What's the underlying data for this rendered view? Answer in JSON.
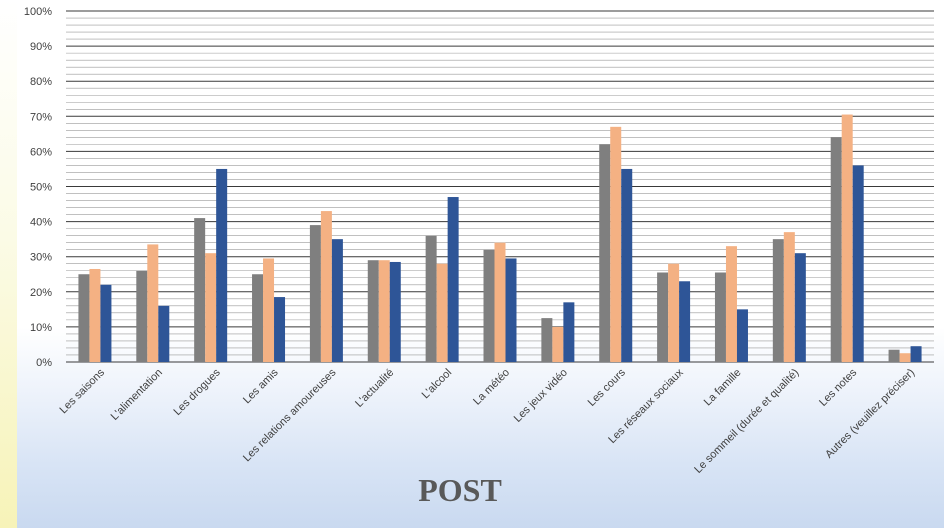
{
  "chart_data": {
    "type": "bar",
    "title": "POST",
    "xlabel": "",
    "ylabel": "",
    "ylim": [
      0,
      100
    ],
    "y_ticks": [
      "0%",
      "10%",
      "20%",
      "30%",
      "40%",
      "50%",
      "60%",
      "70%",
      "80%",
      "90%",
      "100%"
    ],
    "y_unit": "%",
    "grid": "horizontal major and minor",
    "legend": "none",
    "categories": [
      "Les saisons",
      "L'alimentation",
      "Les drogues",
      "Les amis",
      "Les relations amoureuses",
      "L'actualité",
      "L'alcool",
      "La météo",
      "Les jeux vidéo",
      "Les cours",
      "Les réseaux sociaux",
      "La famille",
      "Le sommeil (durée et qualité)",
      "Les notes",
      "Autres (veuillez préciser)"
    ],
    "series": [
      {
        "color": "#7f7f7f",
        "values": [
          25,
          26,
          41,
          25,
          39,
          29,
          36,
          32,
          12.5,
          62,
          25.5,
          25.5,
          35,
          64,
          3.5
        ]
      },
      {
        "color": "#f4b183",
        "values": [
          26.5,
          33.5,
          31,
          29.5,
          43,
          29,
          28,
          34,
          10,
          67,
          28,
          33,
          37,
          70.5,
          2.5
        ]
      },
      {
        "color": "#2e5597",
        "values": [
          22,
          16,
          55,
          18.5,
          35,
          28.5,
          47,
          29.5,
          17,
          55,
          23,
          15,
          31,
          56,
          4.5
        ]
      }
    ]
  }
}
